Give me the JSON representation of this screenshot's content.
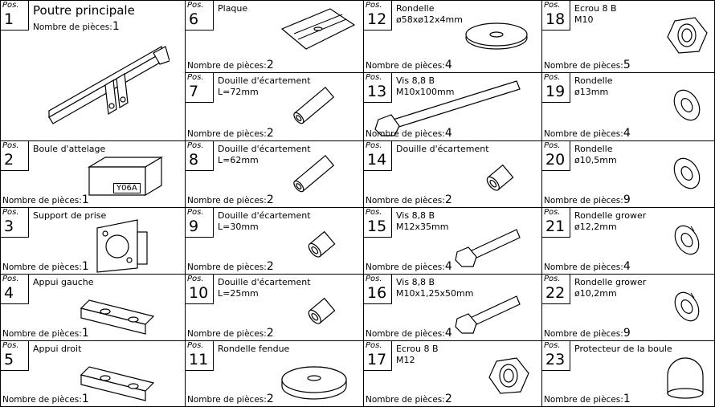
{
  "pos_label": "Pos.",
  "count_label": "Nombre de pièces:",
  "items": [
    {
      "pos": "1",
      "name": "Poutre principale",
      "count": "1"
    },
    {
      "pos": "2",
      "name": "Boule d'attelage",
      "count": "1",
      "marking": "Y06A"
    },
    {
      "pos": "3",
      "name": "Support de prise",
      "count": "1"
    },
    {
      "pos": "4",
      "name": "Appui gauche",
      "count": "1"
    },
    {
      "pos": "5",
      "name": "Appui droit",
      "count": "1"
    },
    {
      "pos": "6",
      "name": "Plaque",
      "count": "2"
    },
    {
      "pos": "7",
      "name": "Douille d'écartement",
      "spec": "L=72mm",
      "count": "2"
    },
    {
      "pos": "8",
      "name": "Douille d'écartement",
      "spec": "L=62mm",
      "count": "2"
    },
    {
      "pos": "9",
      "name": "Douille d'écartement",
      "spec": "L=30mm",
      "count": "2"
    },
    {
      "pos": "10",
      "name": "Douille d'écartement",
      "spec": "L=25mm",
      "count": "2"
    },
    {
      "pos": "11",
      "name": "Rondelle fendue",
      "count": "2"
    },
    {
      "pos": "12",
      "name": "Rondelle",
      "spec": "ø58xø12x4mm",
      "count": "4"
    },
    {
      "pos": "13",
      "name": "Vis 8,8 B",
      "spec": "M10x100mm",
      "count": "4"
    },
    {
      "pos": "14",
      "name": "Douille d'écartement",
      "count": "2"
    },
    {
      "pos": "15",
      "name": "Vis 8,8 B",
      "spec": "M12x35mm",
      "count": "4"
    },
    {
      "pos": "16",
      "name": "Vis 8,8 B",
      "spec": "M10x1,25x50mm",
      "count": "4"
    },
    {
      "pos": "17",
      "name": "Ecrou 8 B",
      "spec": "M12",
      "count": "2"
    },
    {
      "pos": "18",
      "name": "Ecrou 8 B",
      "spec": "M10",
      "count": "5"
    },
    {
      "pos": "19",
      "name": "Rondelle",
      "spec": "ø13mm",
      "count": "4"
    },
    {
      "pos": "20",
      "name": "Rondelle",
      "spec": "ø10,5mm",
      "count": "9"
    },
    {
      "pos": "21",
      "name": "Rondelle grower",
      "spec": "ø12,2mm",
      "count": "4"
    },
    {
      "pos": "22",
      "name": "Rondelle grower",
      "spec": "ø10,2mm",
      "count": "9"
    },
    {
      "pos": "23",
      "name": "Protecteur de la boule",
      "count": "1"
    }
  ]
}
